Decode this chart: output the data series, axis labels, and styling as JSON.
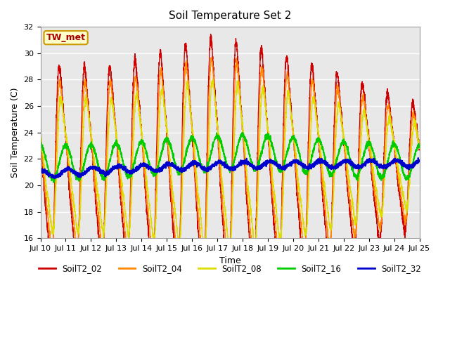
{
  "title": "Soil Temperature Set 2",
  "xlabel": "Time",
  "ylabel": "Soil Temperature (C)",
  "ylim": [
    16,
    32
  ],
  "xlim": [
    0,
    360
  ],
  "annotation": "TW_met",
  "annotation_color": "#aa0000",
  "annotation_bg": "#ffffcc",
  "annotation_border": "#cc9900",
  "bg_color": "#e8e8e8",
  "series": [
    {
      "label": "SoilT2_02",
      "color": "#cc0000",
      "lw": 1.0
    },
    {
      "label": "SoilT2_04",
      "color": "#ff8800",
      "lw": 1.0
    },
    {
      "label": "SoilT2_08",
      "color": "#dddd00",
      "lw": 1.0
    },
    {
      "label": "SoilT2_16",
      "color": "#00cc00",
      "lw": 1.2
    },
    {
      "label": "SoilT2_32",
      "color": "#0000cc",
      "lw": 1.5
    }
  ],
  "xtick_labels": [
    "Jul 10",
    "Jul 11",
    "Jul 12",
    "Jul 13",
    "Jul 14",
    "Jul 15",
    "Jul 16",
    "Jul 17",
    "Jul 18",
    "Jul 19",
    "Jul 20",
    "Jul 21",
    "Jul 22",
    "Jul 23",
    "Jul 24",
    "Jul 25"
  ],
  "xtick_positions": [
    0,
    24,
    48,
    72,
    96,
    120,
    144,
    168,
    192,
    216,
    240,
    264,
    288,
    312,
    336,
    360
  ],
  "ytick_positions": [
    16,
    18,
    20,
    22,
    24,
    26,
    28,
    30,
    32
  ]
}
